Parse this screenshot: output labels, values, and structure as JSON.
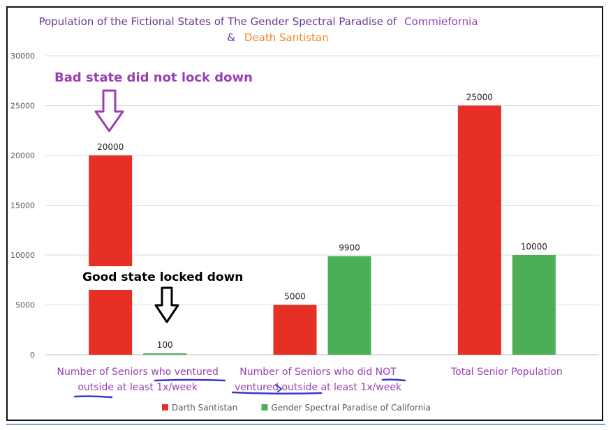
{
  "title": {
    "prefix": "Population of the Fictional States of The Gender Spectral Paradise of",
    "state1": "Commiefornia",
    "amp": "&",
    "state2": "Death Santistan"
  },
  "annotations": {
    "bad_state": "Bad state did not lock down",
    "good_state": "Good state locked down"
  },
  "colors": {
    "red": "#e63025",
    "green": "#4caf57",
    "title": "#6a3596",
    "purple_label": "#9b3fb4",
    "orange": "#ee8a2e",
    "underline": "#3a35c7",
    "grid": "#dcdcdc",
    "axis_text": "#595959"
  },
  "chart_data": {
    "type": "bar",
    "categories": [
      [
        "Number of Seniors who ventured",
        "outside at least 1x/week"
      ],
      [
        "Number of Seniors who did NOT",
        "ventured outside at least 1x/week"
      ],
      [
        "Total Senior Population"
      ]
    ],
    "series": [
      {
        "name": "Darth Santistan",
        "color": "#e63025",
        "values": [
          20000,
          5000,
          25000
        ],
        "labels": [
          "20000",
          "5000",
          "25000"
        ]
      },
      {
        "name": "Gender Spectral Paradise of California",
        "color": "#4caf57",
        "values": [
          100,
          9900,
          10000
        ],
        "labels": [
          "100",
          "9900",
          "10000"
        ]
      }
    ],
    "ylim": [
      0,
      30000
    ],
    "yticks": [
      "0",
      "5000",
      "10000",
      "15000",
      "20000",
      "25000",
      "30000"
    ],
    "grid": true,
    "legend": "bottom"
  }
}
